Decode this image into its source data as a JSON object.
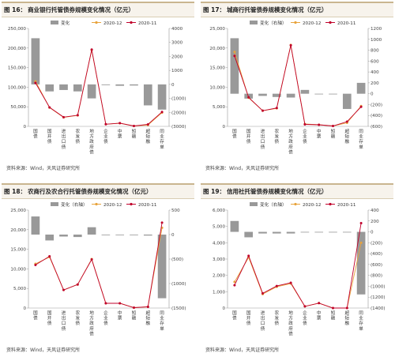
{
  "panels": [
    {
      "fig": "图 16：",
      "title": "商业银行托管债券规模变化情况（亿元）",
      "source": "资料来源：Wind，天风证券研究所"
    },
    {
      "fig": "图 17：",
      "title": "城商行托管债券规模变化情况（亿元）",
      "source": "资料来源：Wind，天风证券研究所"
    },
    {
      "fig": "图 18：",
      "title": "农商行及农合行托管债券规模变化情况（亿元）",
      "source": "资料来源：Wind，天风证券研究所"
    },
    {
      "fig": "图 19：",
      "title": "信用社托管债券规模变化情况（亿元）",
      "source": "资料来源：Wind，天风证券研究所"
    }
  ],
  "chart_data": [
    {
      "type": "bar",
      "categories": [
        "国债",
        "国开债",
        "进出口债",
        "农发债",
        "地方政府债",
        "企业债",
        "中票",
        "短融",
        "超短融",
        "同业存单"
      ],
      "legend": [
        "变化",
        "2020-12",
        "2020-11"
      ],
      "left_axis": {
        "min": 0,
        "max": 250000,
        "ticks": [
          0,
          50000,
          100000,
          150000,
          200000,
          250000
        ]
      },
      "right_axis": {
        "min": -3000,
        "max": 4000,
        "ticks": [
          -3000,
          -2000,
          -1000,
          0,
          1000,
          2000,
          3000,
          4000
        ]
      },
      "right_tick_labels": [
        "(3000)",
        "(2000)",
        "(1000)",
        "0",
        "1000",
        "2000",
        "3000",
        "4000"
      ],
      "change": [
        3300,
        -500,
        -400,
        -500,
        -1000,
        -50,
        -100,
        -80,
        -1500,
        -1800
      ],
      "series": [
        {
          "name": "2020-12",
          "values": [
            115000,
            48000,
            23000,
            28000,
            195000,
            5500,
            8000,
            1000,
            3500,
            35000
          ]
        },
        {
          "name": "2020-11",
          "values": [
            111000,
            48500,
            23500,
            28500,
            196000,
            5500,
            8200,
            1100,
            5000,
            36800
          ]
        }
      ]
    },
    {
      "type": "bar",
      "categories": [
        "国债",
        "国开债",
        "进出口债",
        "农发债",
        "地方政府债",
        "企业债",
        "中票",
        "短融",
        "超短融",
        "同业存单"
      ],
      "legend": [
        "变化（右轴）",
        "2020-12",
        "2020-11"
      ],
      "left_axis": {
        "min": 0,
        "max": 25000,
        "ticks": [
          0,
          5000,
          10000,
          15000,
          20000,
          25000
        ]
      },
      "right_axis": {
        "min": -600,
        "max": 1200,
        "ticks": [
          -600,
          -400,
          -200,
          0,
          200,
          400,
          600,
          800,
          1000,
          1200
        ]
      },
      "right_tick_labels": [
        "(600)",
        "(400)",
        "(200)",
        "0",
        "200",
        "400",
        "600",
        "800",
        "1000",
        "1200"
      ],
      "change": [
        1020,
        -90,
        -40,
        -60,
        -70,
        70,
        -5,
        -5,
        -280,
        200
      ],
      "series": [
        {
          "name": "2020-12",
          "values": [
            19000,
            7300,
            4000,
            4600,
            20800,
            600,
            400,
            100,
            900,
            5200
          ]
        },
        {
          "name": "2020-11",
          "values": [
            18000,
            7400,
            4000,
            4700,
            20700,
            500,
            400,
            100,
            1200,
            5000
          ]
        }
      ]
    },
    {
      "type": "bar",
      "categories": [
        "国债",
        "国开债",
        "进出口债",
        "农发债",
        "地方政府债",
        "企业债",
        "中票",
        "短融",
        "超短融",
        "同业存单"
      ],
      "legend": [
        "变化（右轴）",
        "2020-12",
        "2020-11"
      ],
      "left_axis": {
        "min": 0,
        "max": 25000,
        "ticks": [
          0,
          5000,
          10000,
          15000,
          20000,
          25000
        ]
      },
      "right_axis": {
        "min": -1500,
        "max": 500,
        "ticks": [
          -1500,
          -1000,
          -500,
          0,
          500
        ]
      },
      "right_tick_labels": [
        "(1500)",
        "(1000)",
        "(500)",
        "0",
        "500"
      ],
      "change": [
        370,
        -120,
        -40,
        -50,
        150,
        -10,
        -10,
        -10,
        -20,
        -1300
      ],
      "series": [
        {
          "name": "2020-12",
          "values": [
            11300,
            13000,
            4600,
            6000,
            12500,
            1200,
            1200,
            100,
            300,
            20500
          ]
        },
        {
          "name": "2020-11",
          "values": [
            11000,
            13200,
            4600,
            6000,
            12400,
            1200,
            1200,
            100,
            300,
            21800
          ]
        }
      ]
    },
    {
      "type": "bar",
      "categories": [
        "国债",
        "国开债",
        "进出口债",
        "农发债",
        "地方政府债",
        "企业债",
        "中票",
        "短融",
        "超短融",
        "同业存单"
      ],
      "legend": [
        "变化（右轴）",
        "2020-12",
        "2020-11"
      ],
      "left_axis": {
        "min": 0,
        "max": 6000,
        "ticks": [
          0,
          1000,
          2000,
          3000,
          4000,
          5000,
          6000
        ]
      },
      "right_axis": {
        "min": -1400,
        "max": 400,
        "ticks": [
          -1400,
          -1200,
          -1000,
          -800,
          -600,
          -400,
          -200,
          0,
          200,
          400
        ]
      },
      "right_tick_labels": [
        "(1400)",
        "(1200)",
        "(1000)",
        "(800)",
        "(600)",
        "(400)",
        "(200)",
        "0",
        "200",
        "400"
      ],
      "change": [
        200,
        -100,
        -30,
        -30,
        -30,
        0,
        -10,
        0,
        0,
        -1150
      ],
      "series": [
        {
          "name": "2020-12",
          "values": [
            1600,
            3100,
            850,
            1300,
            1500,
            100,
            300,
            0,
            0,
            4000
          ]
        },
        {
          "name": "2020-11",
          "values": [
            1400,
            3200,
            900,
            1350,
            1550,
            100,
            300,
            0,
            0,
            5200
          ]
        }
      ]
    }
  ],
  "colors": {
    "bar": "#999999",
    "dec": "#e8a33c",
    "nov": "#c0002b",
    "axis": "#999999"
  }
}
